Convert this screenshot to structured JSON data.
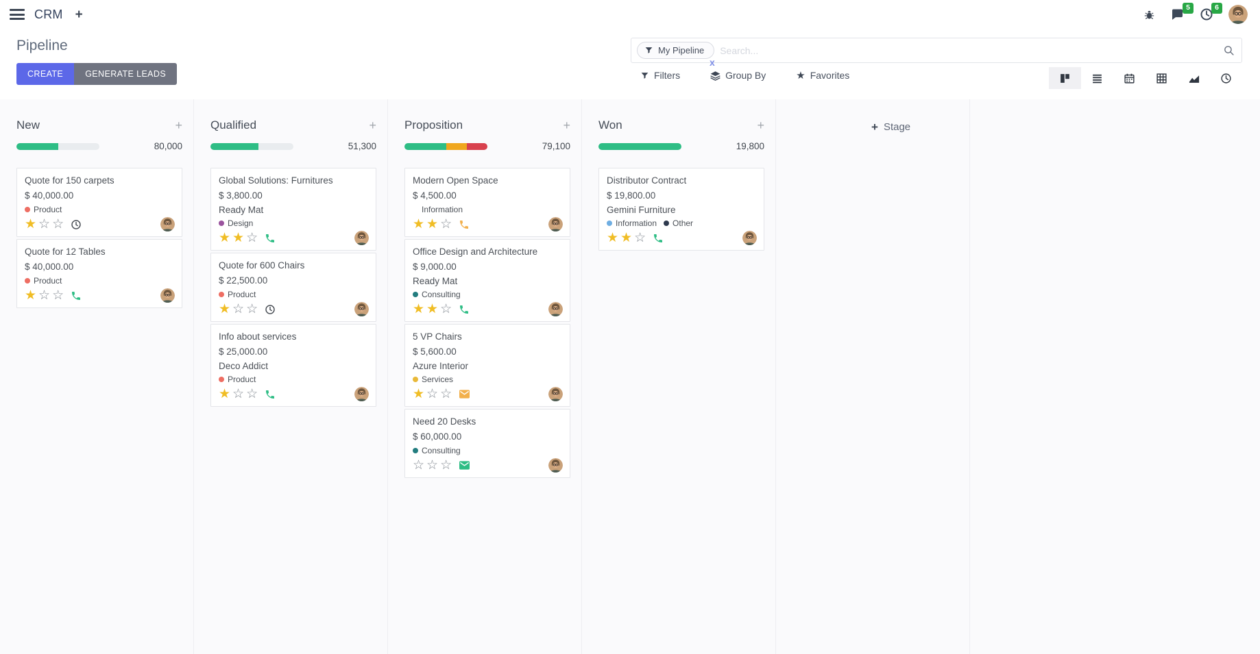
{
  "navbar": {
    "app_name": "CRM",
    "message_badge": "5",
    "activity_badge": "6"
  },
  "control_panel": {
    "title": "Pipeline",
    "create_label": "CREATE",
    "generate_leads_label": "GENERATE LEADS",
    "search": {
      "facet_label": "My Pipeline",
      "placeholder": "Search...",
      "facet_remove": "x"
    },
    "filters_label": "Filters",
    "group_by_label": "Group By",
    "favorites_label": "Favorites"
  },
  "add_stage_label": "Stage",
  "colors": {
    "primary": "#5c68e8",
    "secondary_button": "#6f7380",
    "green": "#2ebd85",
    "orange": "#f0a71f",
    "red": "#d8414e",
    "badge_green": "#28a745",
    "star_gold": "#f0bd25",
    "track_gray": "#e9ecef"
  },
  "columns": [
    {
      "name": "New",
      "total": "80,000",
      "progress": [
        {
          "color": "green",
          "pct": 50
        }
      ],
      "cards": [
        {
          "title": "Quote for 150 carpets",
          "amount": "$ 40,000.00",
          "tags": [
            {
              "label": "Product",
              "color": "#ee6e63"
            }
          ],
          "stars": 1,
          "activity": {
            "type": "clock",
            "color": "dark"
          }
        },
        {
          "title": "Quote for 12 Tables",
          "amount": "$ 40,000.00",
          "tags": [
            {
              "label": "Product",
              "color": "#ee6e63"
            }
          ],
          "stars": 1,
          "activity": {
            "type": "phone",
            "color": "green"
          }
        }
      ]
    },
    {
      "name": "Qualified",
      "total": "51,300",
      "progress": [
        {
          "color": "green",
          "pct": 58
        }
      ],
      "cards": [
        {
          "title": "Global Solutions: Furnitures",
          "amount": "$ 3,800.00",
          "partner": "Ready Mat",
          "tags": [
            {
              "label": "Design",
              "color": "#9a549e"
            }
          ],
          "stars": 2,
          "activity": {
            "type": "phone",
            "color": "green"
          }
        },
        {
          "title": "Quote for 600 Chairs",
          "amount": "$ 22,500.00",
          "tags": [
            {
              "label": "Product",
              "color": "#ee6e63"
            }
          ],
          "stars": 1,
          "activity": {
            "type": "clock",
            "color": "dark"
          }
        },
        {
          "title": "Info about services",
          "amount": "$ 25,000.00",
          "partner": "Deco Addict",
          "tags": [
            {
              "label": "Product",
              "color": "#ee6e63"
            }
          ],
          "stars": 1,
          "activity": {
            "type": "phone",
            "color": "green"
          }
        }
      ]
    },
    {
      "name": "Proposition",
      "total": "79,100",
      "progress": [
        {
          "color": "green",
          "pct": 50
        },
        {
          "color": "orange",
          "pct": 25
        },
        {
          "color": "red",
          "pct": 25
        }
      ],
      "cards": [
        {
          "title": "Modern Open Space",
          "amount": "$ 4,500.00",
          "tags": [
            {
              "label": "Information",
              "color": "#6fаeе2"
            }
          ],
          "stars": 2,
          "activity": {
            "type": "phone",
            "color": "orange"
          }
        },
        {
          "title": "Office Design and Architecture",
          "amount": "$ 9,000.00",
          "partner": "Ready Mat",
          "tags": [
            {
              "label": "Consulting",
              "color": "#237d7f"
            }
          ],
          "stars": 2,
          "activity": {
            "type": "phone",
            "color": "green"
          }
        },
        {
          "title": "5 VP Chairs",
          "amount": "$ 5,600.00",
          "partner": "Azure Interior",
          "tags": [
            {
              "label": "Services",
              "color": "#e9b939"
            }
          ],
          "stars": 1,
          "activity": {
            "type": "envelope",
            "color": "orange"
          }
        },
        {
          "title": "Need 20 Desks",
          "amount": "$ 60,000.00",
          "tags": [
            {
              "label": "Consulting",
              "color": "#237d7f"
            }
          ],
          "stars": 0,
          "activity": {
            "type": "envelope",
            "color": "green"
          }
        }
      ]
    },
    {
      "name": "Won",
      "total": "19,800",
      "progress": [
        {
          "color": "green",
          "pct": 100
        }
      ],
      "cards": [
        {
          "title": "Distributor Contract",
          "amount": "$ 19,800.00",
          "partner": "Gemini Furniture",
          "tags": [
            {
              "label": "Information",
              "color": "#6faee2"
            },
            {
              "label": "Other",
              "color": "#2e3a4e"
            }
          ],
          "stars": 2,
          "activity": {
            "type": "phone",
            "color": "green"
          }
        }
      ]
    }
  ]
}
